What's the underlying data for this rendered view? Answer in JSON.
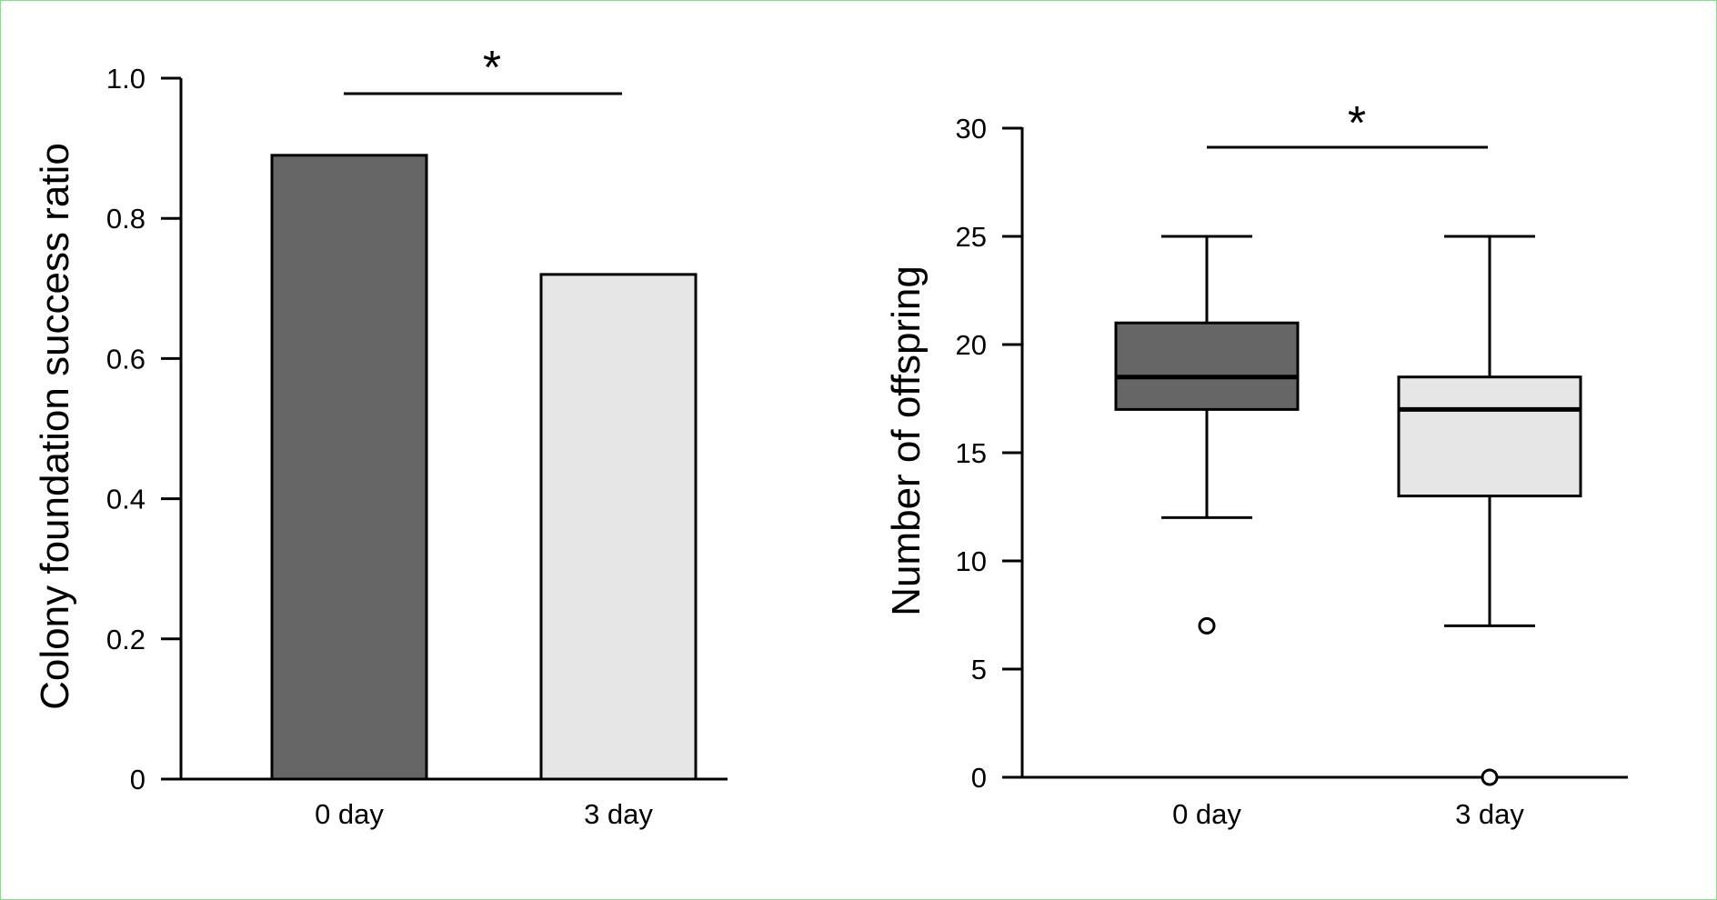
{
  "chart_data": [
    {
      "type": "bar",
      "categories": [
        "0 day",
        "3 day"
      ],
      "values": [
        0.89,
        0.72
      ],
      "colors": [
        "#666666",
        "#e6e6e6"
      ],
      "xlabel": "",
      "ylabel": "Colony foundation success ratio",
      "ylim": [
        0,
        1.0
      ],
      "yticks": [
        "0",
        "0.2",
        "0.4",
        "0.6",
        "0.8",
        "1.0"
      ],
      "significance": "*",
      "grid": false
    },
    {
      "type": "box",
      "categories": [
        "0 day",
        "3 day"
      ],
      "series": [
        {
          "whisker_low": 12,
          "q1": 17,
          "median": 18.5,
          "q3": 21,
          "whisker_high": 25,
          "outliers": [
            7
          ]
        },
        {
          "whisker_low": 7,
          "q1": 13,
          "median": 17,
          "q3": 18.5,
          "whisker_high": 25,
          "outliers": [
            0
          ]
        }
      ],
      "colors": [
        "#666666",
        "#e6e6e6"
      ],
      "xlabel": "",
      "ylabel": "Number of offspring",
      "ylim": [
        0,
        30
      ],
      "yticks": [
        "0",
        "5",
        "10",
        "15",
        "20",
        "25",
        "30"
      ],
      "significance": "*",
      "grid": false
    }
  ]
}
